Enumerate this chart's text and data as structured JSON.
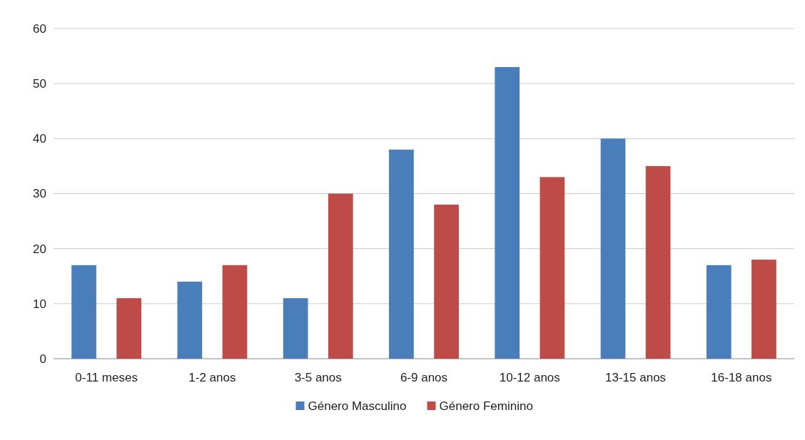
{
  "chart_data": {
    "type": "bar",
    "categories": [
      "0-11 meses",
      "1-2 anos",
      "3-5 anos",
      "6-9 anos",
      "10-12 anos",
      "13-15 anos",
      "16-18 anos"
    ],
    "series": [
      {
        "name": "Género Masculino",
        "color": "#4a7ebb",
        "values": [
          17,
          14,
          11,
          38,
          53,
          40,
          17
        ]
      },
      {
        "name": "Género Feminino",
        "color": "#be4b48",
        "values": [
          11,
          17,
          30,
          28,
          33,
          35,
          18
        ]
      }
    ],
    "ylim": [
      0,
      60
    ],
    "yticks": [
      0,
      10,
      20,
      30,
      40,
      50,
      60
    ],
    "grid": "y",
    "legend": "bottom"
  }
}
